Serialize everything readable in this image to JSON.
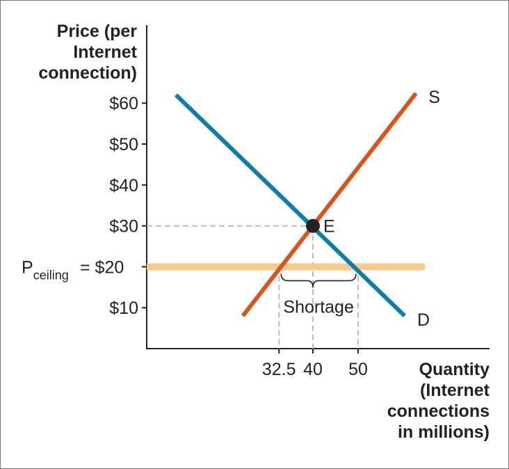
{
  "chart_data": {
    "type": "line",
    "ylabel": [
      "Price (per",
      "Internet",
      "connection)"
    ],
    "xlabel": [
      "Quantity",
      "(Internet",
      "connections",
      "in millions)"
    ],
    "y_ticks": [
      {
        "v": 60,
        "label": "$60"
      },
      {
        "v": 50,
        "label": "$50"
      },
      {
        "v": 40,
        "label": "$40"
      },
      {
        "v": 30,
        "label": "$30"
      },
      {
        "v": 20,
        "label": "$20"
      },
      {
        "v": 10,
        "label": "$10"
      }
    ],
    "x_ticks": [
      {
        "v": 32.5,
        "label": "32.5"
      },
      {
        "v": 40,
        "label": "40"
      },
      {
        "v": 50,
        "label": "50"
      }
    ],
    "series": [
      {
        "name": "S",
        "color": "#d9531e",
        "points": [
          [
            24.5,
            8
          ],
          [
            62.8,
            62.4
          ]
        ]
      },
      {
        "name": "D",
        "color": "#0e7ea8",
        "points": [
          [
            9.7,
            62
          ],
          [
            60.3,
            8
          ]
        ]
      }
    ],
    "price_ceiling": {
      "value": 20,
      "label_main": "P",
      "label_sub": "ceiling",
      "label_eq": "= $20",
      "color": "#fbc98e"
    },
    "equilibrium": {
      "label": "E",
      "quantity": 40,
      "price": 30
    },
    "shortage": {
      "label": "Shortage",
      "from": 32.5,
      "to": 50
    },
    "grid": false
  }
}
